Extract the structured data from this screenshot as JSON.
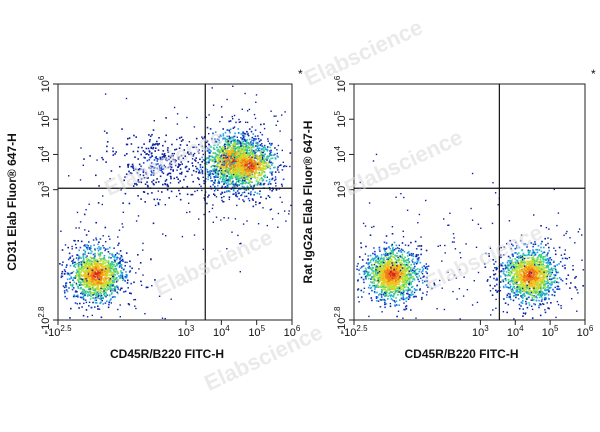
{
  "watermark": "Elabscience",
  "chart_data": [
    {
      "type": "scatter",
      "style": "pseudocolor density dot plot",
      "xlabel": "CD45R/B220 FITC-H",
      "ylabel": "CD31 Elab Fluor® 647-H",
      "x_ticks": [
        {
          "base": "-10",
          "exp": "2.5",
          "value": -316
        },
        {
          "base": "10",
          "exp": "3",
          "value": 1000
        },
        {
          "base": "10",
          "exp": "4",
          "value": 10000
        },
        {
          "base": "10",
          "exp": "5",
          "value": 100000
        },
        {
          "base": "10",
          "exp": "6",
          "value": 1000000
        }
      ],
      "y_ticks": [
        {
          "base": "-10",
          "exp": "2.8",
          "value": -631
        },
        {
          "base": "10",
          "exp": "3",
          "value": 1000
        },
        {
          "base": "10",
          "exp": "4",
          "value": 10000
        },
        {
          "base": "10",
          "exp": "5",
          "value": 100000
        },
        {
          "base": "10",
          "exp": "6",
          "value": 1000000
        }
      ],
      "gate_x": 3500,
      "gate_y": 1100,
      "corner_mark": "*",
      "populations": [
        {
          "x": 150,
          "y": 200,
          "density": "high"
        },
        {
          "x": 20000,
          "y": 7000,
          "density": "high"
        },
        {
          "x": 60000,
          "y": 5000,
          "density": "medium"
        },
        {
          "x": 700,
          "y": 5000,
          "density": "low"
        }
      ]
    },
    {
      "type": "scatter",
      "style": "pseudocolor density dot plot",
      "xlabel": "CD45R/B220 FITC-H",
      "ylabel": "Rat IgG2a Elab Fluor® 647-H",
      "x_ticks": [
        {
          "base": "-10",
          "exp": "2.5",
          "value": -316
        },
        {
          "base": "10",
          "exp": "3",
          "value": 1000
        },
        {
          "base": "10",
          "exp": "4",
          "value": 10000
        },
        {
          "base": "10",
          "exp": "5",
          "value": 100000
        },
        {
          "base": "10",
          "exp": "6",
          "value": 1000000
        }
      ],
      "y_ticks": [
        {
          "base": "-10",
          "exp": "2.8",
          "value": -631
        },
        {
          "base": "10",
          "exp": "3",
          "value": 1000
        },
        {
          "base": "10",
          "exp": "4",
          "value": 10000
        },
        {
          "base": "10",
          "exp": "5",
          "value": 100000
        },
        {
          "base": "10",
          "exp": "6",
          "value": 1000000
        }
      ],
      "gate_x": 3500,
      "gate_y": 1100,
      "corner_mark": "*",
      "populations": [
        {
          "x": 150,
          "y": 200,
          "density": "high"
        },
        {
          "x": 25000,
          "y": 200,
          "density": "high"
        }
      ]
    }
  ]
}
